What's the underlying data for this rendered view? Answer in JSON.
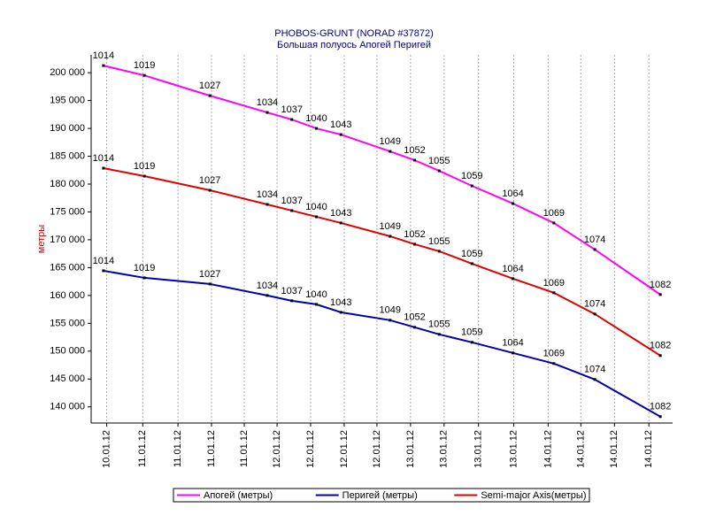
{
  "chart_data": {
    "type": "line",
    "title": "PHOBOS-GRUNT (NORAD #37872)",
    "subtitle": "Большая полуось  Апогей  Перигей",
    "y_label": "метры",
    "x": [
      1014,
      1019,
      1027,
      1034,
      1037,
      1040,
      1043,
      1049,
      1052,
      1055,
      1059,
      1064,
      1069,
      1074,
      1082
    ],
    "xlim": [
      1012.5,
      1083.5
    ],
    "xticks": [
      {
        "value": 1014.4,
        "label": "10.01.12"
      },
      {
        "value": 1018.8,
        "label": "11.01.12"
      },
      {
        "value": 1023.1,
        "label": "11.01.12"
      },
      {
        "value": 1027.2,
        "label": "11.01.12"
      },
      {
        "value": 1031.2,
        "label": "11.01.12"
      },
      {
        "value": 1035.2,
        "label": "12.01.12"
      },
      {
        "value": 1039.3,
        "label": "12.01.12"
      },
      {
        "value": 1043.4,
        "label": "12.01.12"
      },
      {
        "value": 1047.4,
        "label": "12.01.12"
      },
      {
        "value": 1051.5,
        "label": "13.01.12"
      },
      {
        "value": 1055.6,
        "label": "13.01.12"
      },
      {
        "value": 1059.8,
        "label": "13.01.12"
      },
      {
        "value": 1064.1,
        "label": "13.01.12"
      },
      {
        "value": 1068.3,
        "label": "14.01.12"
      },
      {
        "value": 1072.3,
        "label": "14.01.12"
      },
      {
        "value": 1076.4,
        "label": "14.01.12"
      },
      {
        "value": 1080.6,
        "label": "14.01.12"
      }
    ],
    "ylim": [
      137100,
      203200
    ],
    "yticks": [
      {
        "value": 140000,
        "label": "140 000"
      },
      {
        "value": 145000,
        "label": "145 000"
      },
      {
        "value": 150000,
        "label": "150 000"
      },
      {
        "value": 155000,
        "label": "155 000"
      },
      {
        "value": 160000,
        "label": "160 000"
      },
      {
        "value": 165000,
        "label": "165 000"
      },
      {
        "value": 170000,
        "label": "170 000"
      },
      {
        "value": 175000,
        "label": "175 000"
      },
      {
        "value": 180000,
        "label": "180 000"
      },
      {
        "value": 185000,
        "label": "185 000"
      },
      {
        "value": 190000,
        "label": "190 000"
      },
      {
        "value": 195000,
        "label": "195 000"
      },
      {
        "value": 200000,
        "label": "200 000"
      }
    ],
    "grid": true,
    "legend": "bottom",
    "series": [
      {
        "name": "Апогей (метры)",
        "color": "#ff00ff",
        "values": [
          201270,
          199520,
          195870,
          192860,
          191590,
          190000,
          188890,
          185870,
          184290,
          182380,
          179680,
          176510,
          173020,
          168250,
          160160
        ]
      },
      {
        "name": "Перигей (метры)",
        "color": "#0000b0",
        "values": [
          164440,
          163170,
          162060,
          160000,
          159050,
          158410,
          156980,
          155560,
          154290,
          153020,
          151590,
          149680,
          147780,
          144920,
          138250
        ]
      },
      {
        "name": "Semi-major Axis(метры)",
        "color": "#e00000",
        "values": [
          182860,
          181430,
          178890,
          176350,
          175240,
          174130,
          173020,
          170630,
          169210,
          167940,
          165710,
          163020,
          160480,
          156670,
          149210
        ]
      }
    ]
  }
}
